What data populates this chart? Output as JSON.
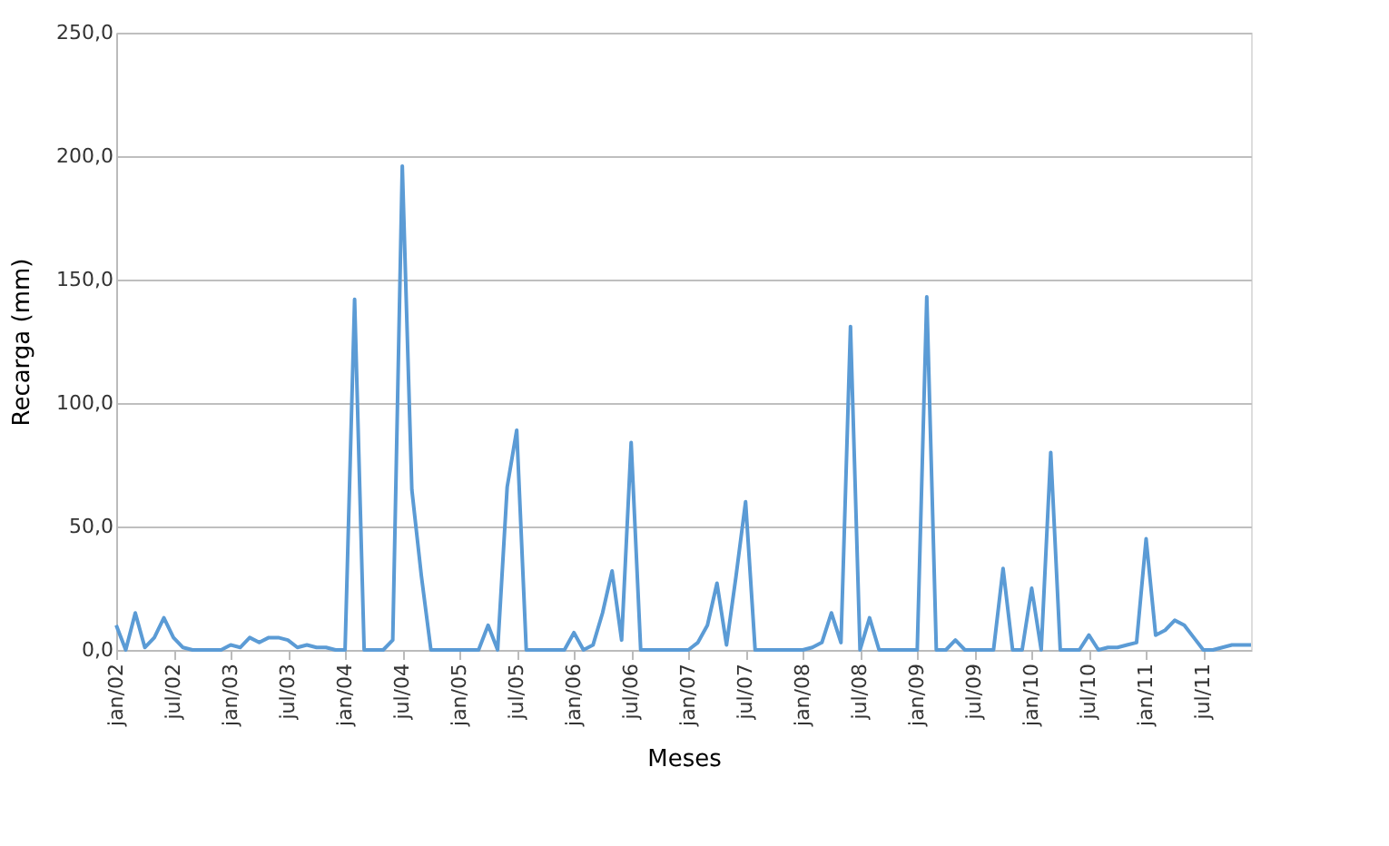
{
  "chart_data": {
    "type": "line",
    "xlabel": "Meses",
    "ylabel": "Recarga (mm)",
    "color": "#5b9bd5",
    "grid": "y",
    "marker": "none",
    "line_style": "solid",
    "categories": [
      "jan/02",
      null,
      null,
      null,
      null,
      null,
      "jul/02",
      null,
      null,
      null,
      null,
      null,
      "jan/03",
      null,
      null,
      null,
      null,
      null,
      "jul/03",
      null,
      null,
      null,
      null,
      null,
      "jan/04",
      null,
      null,
      null,
      null,
      null,
      "jul/04",
      null,
      null,
      null,
      null,
      null,
      "jan/05",
      null,
      null,
      null,
      null,
      null,
      "jul/05",
      null,
      null,
      null,
      null,
      null,
      "jan/06",
      null,
      null,
      null,
      null,
      null,
      "jul/06",
      null,
      null,
      null,
      null,
      null,
      "jan/07",
      null,
      null,
      null,
      null,
      null,
      "jul/07",
      null,
      null,
      null,
      null,
      null,
      "jan/08",
      null,
      null,
      null,
      null,
      null,
      "jul/08",
      null,
      null,
      null,
      null,
      null,
      "jan/09",
      null,
      null,
      null,
      null,
      null,
      "jul/09",
      null,
      null,
      null,
      null,
      null,
      "jan/10",
      null,
      null,
      null,
      null,
      null,
      "jul/10",
      null,
      null,
      null,
      null,
      null,
      "jan/11",
      null,
      null,
      null,
      null,
      null,
      "jul/11",
      null,
      null,
      null,
      null,
      null
    ],
    "values": [
      10,
      0,
      15,
      1,
      5,
      13,
      5,
      1,
      0,
      0,
      0,
      0,
      2,
      1,
      5,
      3,
      5,
      5,
      4,
      1,
      2,
      1,
      1,
      0,
      0,
      142,
      0,
      0,
      0,
      4,
      196,
      65,
      30,
      0,
      0,
      0,
      0,
      0,
      0,
      10,
      0,
      66,
      89,
      0,
      0,
      0,
      0,
      0,
      7,
      0,
      2,
      15,
      32,
      4,
      84,
      0,
      0,
      0,
      0,
      0,
      0,
      3,
      10,
      27,
      2,
      30,
      60,
      0,
      0,
      0,
      0,
      0,
      0,
      1,
      3,
      15,
      3,
      131,
      0,
      13,
      0,
      0,
      0,
      0,
      0,
      143,
      0,
      0,
      4,
      0,
      0,
      0,
      0,
      33,
      0,
      0,
      25,
      0,
      80,
      0,
      0,
      0,
      6,
      0,
      1,
      1,
      2,
      3,
      45,
      6,
      8,
      12,
      10,
      5,
      0,
      0,
      1,
      2,
      2,
      2
    ],
    "ylim": [
      0,
      250
    ],
    "yticks": [
      {
        "value": 0,
        "label": "0,0"
      },
      {
        "value": 50,
        "label": "50,0"
      },
      {
        "value": 100,
        "label": "100,0"
      },
      {
        "value": 150,
        "label": "150,0"
      },
      {
        "value": 200,
        "label": "200,0"
      },
      {
        "value": 250,
        "label": "250,0"
      }
    ]
  }
}
